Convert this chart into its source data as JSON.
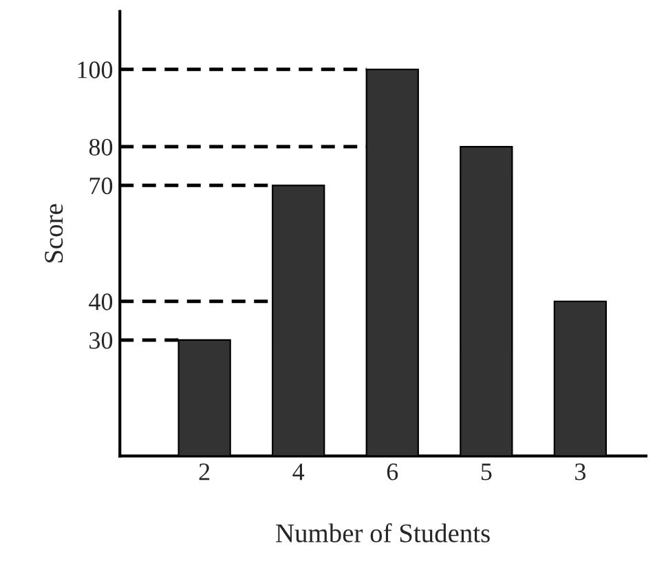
{
  "chart_data": {
    "type": "bar",
    "xlabel": "Number of Students",
    "ylabel": "Score",
    "categories": [
      "2",
      "4",
      "6",
      "5",
      "3"
    ],
    "values": [
      30,
      70,
      100,
      80,
      40
    ],
    "color": "#333333",
    "ylim": [
      0,
      115
    ],
    "yticks": [
      30,
      40,
      70,
      80,
      100
    ],
    "ref_lines": [
      {
        "axis": "y",
        "value": 100,
        "line_style": "dashed",
        "color": "#000000"
      },
      {
        "axis": "y",
        "value": 80,
        "line_style": "dashed",
        "color": "#000000"
      },
      {
        "axis": "y",
        "value": 70,
        "line_style": "dashed",
        "color": "#000000"
      },
      {
        "axis": "y",
        "value": 40,
        "line_style": "dashed",
        "color": "#000000"
      },
      {
        "axis": "y",
        "value": 30,
        "line_style": "dashed",
        "color": "#000000"
      }
    ],
    "grid": false,
    "legend": false
  }
}
